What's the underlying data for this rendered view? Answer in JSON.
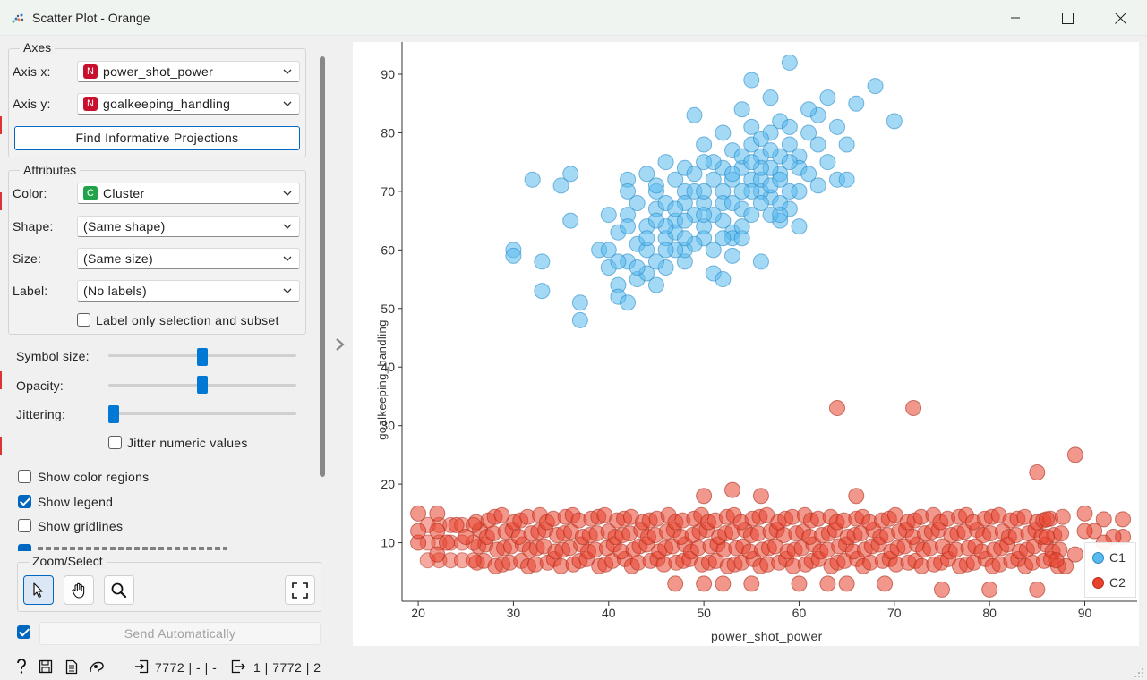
{
  "window": {
    "title": "Scatter Plot - Orange"
  },
  "axes": {
    "group_title": "Axes",
    "x_label": "Axis x:",
    "x_value": "power_shot_power",
    "x_badge": "N",
    "y_label": "Axis y:",
    "y_value": "goalkeeping_handling",
    "y_badge": "N",
    "find_button": "Find Informative Projections"
  },
  "attributes": {
    "group_title": "Attributes",
    "color_label": "Color:",
    "color_value": "Cluster",
    "color_badge": "C",
    "shape_label": "Shape:",
    "shape_value": "(Same shape)",
    "size_label": "Size:",
    "size_value": "(Same size)",
    "label_label": "Label:",
    "label_value": "(No labels)",
    "label_only_selection": "Label only selection and subset"
  },
  "sliders": {
    "symbol_size_label": "Symbol size:",
    "symbol_size_level": 0.5,
    "opacity_label": "Opacity:",
    "opacity_level": 0.5,
    "jittering_label": "Jittering:",
    "jittering_level": 0.0,
    "jitter_numeric": "Jitter numeric values"
  },
  "options": {
    "show_color_regions": "Show color regions",
    "show_color_regions_checked": false,
    "show_legend": "Show legend",
    "show_legend_checked": true,
    "show_gridlines": "Show gridlines",
    "show_gridlines_checked": false
  },
  "zoom": {
    "group_title": "Zoom/Select"
  },
  "send": {
    "label": "Send Automatically",
    "checked": true
  },
  "status": {
    "input_summary": "7772 | - | -",
    "output_summary": "1 | 7772 | 2"
  },
  "colors": {
    "C1": "#5ab9ee",
    "C2": "#e8412d",
    "accent": "#0067c0"
  },
  "chart_data": {
    "type": "scatter",
    "xlabel": "power_shot_power",
    "ylabel": "goalkeeping_handling",
    "xlim": [
      18.3,
      95.5
    ],
    "ylim": [
      0,
      95.5
    ],
    "xticks": [
      20,
      30,
      40,
      50,
      60,
      70,
      80,
      90
    ],
    "yticks": [
      10,
      20,
      30,
      40,
      50,
      60,
      70,
      80,
      90
    ],
    "grid": false,
    "legend_position": "bottom-right",
    "legend": [
      "C1",
      "C2"
    ],
    "series": [
      {
        "name": "C1",
        "color": "#5ab9ee",
        "points": [
          [
            59,
            92
          ],
          [
            55,
            89
          ],
          [
            68,
            88
          ],
          [
            63,
            86
          ],
          [
            66,
            85
          ],
          [
            70,
            82
          ],
          [
            62,
            83
          ],
          [
            49,
            83
          ],
          [
            54,
            84
          ],
          [
            64,
            81
          ],
          [
            65,
            78
          ],
          [
            57,
            86
          ],
          [
            61,
            84
          ],
          [
            48,
            74
          ],
          [
            32,
            72
          ],
          [
            35,
            71
          ],
          [
            30,
            60
          ],
          [
            30,
            59
          ],
          [
            36,
            73
          ],
          [
            40,
            66
          ],
          [
            36,
            65
          ],
          [
            42,
            72
          ],
          [
            33,
            58
          ],
          [
            33,
            53
          ],
          [
            37,
            51
          ],
          [
            37,
            48
          ],
          [
            39,
            60
          ],
          [
            40,
            57
          ],
          [
            41,
            54
          ],
          [
            41,
            52
          ],
          [
            42,
            51
          ],
          [
            43,
            55
          ],
          [
            45,
            54
          ],
          [
            44,
            56
          ],
          [
            46,
            57
          ],
          [
            48,
            58
          ],
          [
            51,
            56
          ],
          [
            52,
            55
          ],
          [
            56,
            58
          ],
          [
            53,
            59
          ],
          [
            45,
            67
          ],
          [
            45,
            70
          ],
          [
            47,
            65
          ],
          [
            50,
            68
          ],
          [
            55,
            72
          ],
          [
            57,
            69
          ],
          [
            58,
            76
          ],
          [
            60,
            76
          ],
          [
            62,
            71
          ],
          [
            63,
            75
          ],
          [
            64,
            72
          ],
          [
            65,
            72
          ],
          [
            60,
            64
          ],
          [
            58,
            65
          ],
          [
            53,
            63
          ],
          [
            52,
            65
          ],
          [
            54,
            67
          ],
          [
            56,
            70
          ],
          [
            58,
            73
          ],
          [
            59,
            78
          ],
          [
            61,
            80
          ],
          [
            50,
            78
          ],
          [
            52,
            80
          ],
          [
            55,
            81
          ],
          [
            57,
            80
          ],
          [
            46,
            75
          ],
          [
            44,
            73
          ],
          [
            42,
            70
          ],
          [
            43,
            68
          ],
          [
            46,
            62
          ],
          [
            48,
            60
          ],
          [
            50,
            62
          ],
          [
            52,
            70
          ],
          [
            53,
            72
          ],
          [
            54,
            74
          ],
          [
            56,
            76
          ],
          [
            44,
            64
          ],
          [
            42,
            66
          ],
          [
            41,
            63
          ],
          [
            43,
            61
          ],
          [
            47,
            63
          ],
          [
            49,
            66
          ],
          [
            51,
            72
          ],
          [
            48,
            70
          ],
          [
            50,
            75
          ],
          [
            53,
            77
          ],
          [
            55,
            78
          ],
          [
            56,
            79
          ],
          [
            58,
            82
          ],
          [
            59,
            81
          ],
          [
            57,
            74
          ],
          [
            55,
            70
          ],
          [
            52,
            68
          ],
          [
            49,
            70
          ],
          [
            47,
            72
          ],
          [
            45,
            71
          ],
          [
            46,
            68
          ],
          [
            48,
            65
          ],
          [
            50,
            64
          ],
          [
            51,
            66
          ],
          [
            53,
            68
          ],
          [
            54,
            70
          ],
          [
            56,
            72
          ],
          [
            57,
            71
          ],
          [
            58,
            68
          ],
          [
            59,
            70
          ],
          [
            60,
            74
          ],
          [
            61,
            73
          ],
          [
            62,
            78
          ],
          [
            44,
            60
          ],
          [
            42,
            58
          ],
          [
            40,
            60
          ],
          [
            41,
            58
          ],
          [
            43,
            57
          ],
          [
            45,
            58
          ],
          [
            47,
            60
          ],
          [
            49,
            61
          ],
          [
            51,
            60
          ],
          [
            53,
            62
          ],
          [
            55,
            66
          ],
          [
            57,
            66
          ],
          [
            59,
            67
          ],
          [
            54,
            62
          ],
          [
            46,
            64
          ],
          [
            48,
            68
          ],
          [
            50,
            70
          ],
          [
            52,
            74
          ],
          [
            54,
            76
          ],
          [
            56,
            74
          ],
          [
            58,
            72
          ],
          [
            60,
            70
          ],
          [
            45,
            65
          ],
          [
            47,
            67
          ],
          [
            49,
            73
          ],
          [
            51,
            75
          ],
          [
            53,
            73
          ],
          [
            55,
            75
          ],
          [
            57,
            77
          ],
          [
            59,
            75
          ],
          [
            44,
            62
          ],
          [
            42,
            64
          ],
          [
            46,
            60
          ],
          [
            48,
            62
          ],
          [
            50,
            66
          ],
          [
            52,
            62
          ],
          [
            54,
            64
          ],
          [
            56,
            68
          ],
          [
            58,
            66
          ]
        ]
      },
      {
        "name": "C2",
        "color": "#e8412d",
        "points": [
          [
            64,
            33
          ],
          [
            72,
            33
          ],
          [
            89,
            25
          ],
          [
            85,
            22
          ],
          [
            53,
            19
          ],
          [
            56,
            18
          ],
          [
            66,
            18
          ],
          [
            50,
            18
          ],
          [
            20,
            15
          ],
          [
            20,
            10
          ],
          [
            20,
            12
          ],
          [
            22,
            15
          ],
          [
            22,
            8
          ],
          [
            23,
            10
          ],
          [
            24,
            13
          ],
          [
            25,
            11
          ],
          [
            22,
            12
          ],
          [
            94,
            14
          ],
          [
            94,
            11
          ],
          [
            93,
            11
          ],
          [
            92,
            10
          ],
          [
            90,
            15
          ],
          [
            88,
            6
          ],
          [
            89,
            8
          ],
          [
            87,
            7
          ],
          [
            91,
            12
          ],
          [
            92,
            14
          ],
          [
            90,
            12
          ],
          [
            86,
            11
          ],
          [
            86,
            14
          ],
          [
            85,
            2
          ],
          [
            80,
            2
          ],
          [
            75,
            2
          ],
          [
            69,
            3
          ],
          [
            65,
            3
          ],
          [
            63,
            3
          ],
          [
            60,
            3
          ],
          [
            55,
            3
          ],
          [
            52,
            3
          ],
          [
            50,
            3
          ],
          [
            47,
            3
          ]
        ]
      }
    ]
  }
}
